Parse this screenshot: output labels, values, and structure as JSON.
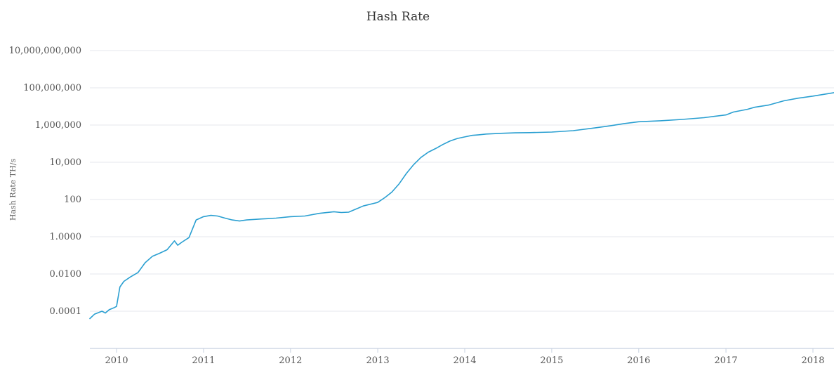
{
  "chart_data": {
    "type": "line",
    "title": "Hash Rate",
    "xlabel": "",
    "ylabel": "Hash Rate TH/s",
    "y_scale": "log",
    "ylim": [
      1e-05,
      10000000000
    ],
    "xlim": [
      "2009-09-01",
      "2018-03-31"
    ],
    "grid": true,
    "legend": "none",
    "y_ticks": [
      {
        "value": 10000000000,
        "label": "10,000,000,000"
      },
      {
        "value": 100000000,
        "label": "100,000,000"
      },
      {
        "value": 1000000,
        "label": "1,000,000"
      },
      {
        "value": 10000,
        "label": "10,000"
      },
      {
        "value": 100,
        "label": "100"
      },
      {
        "value": 1,
        "label": "1.0000"
      },
      {
        "value": 0.01,
        "label": "0.0100"
      },
      {
        "value": 0.0001,
        "label": "0.0001"
      }
    ],
    "x_ticks": [
      {
        "value": "2010-01-01",
        "label": "2010"
      },
      {
        "value": "2011-01-01",
        "label": "2011"
      },
      {
        "value": "2012-01-01",
        "label": "2012"
      },
      {
        "value": "2013-01-01",
        "label": "2013"
      },
      {
        "value": "2014-01-01",
        "label": "2014"
      },
      {
        "value": "2015-01-01",
        "label": "2015"
      },
      {
        "value": "2016-01-01",
        "label": "2016"
      },
      {
        "value": "2017-01-01",
        "label": "2017"
      },
      {
        "value": "2018-01-01",
        "label": "2018"
      }
    ],
    "series": [
      {
        "color": "#2a9fd1",
        "x": [
          "2009-09-01",
          "2009-10-01",
          "2009-11-01",
          "2009-11-15",
          "2009-12-01",
          "2009-12-20",
          "2010-01-01",
          "2010-01-15",
          "2010-02-01",
          "2010-03-01",
          "2010-04-01",
          "2010-05-01",
          "2010-06-01",
          "2010-07-01",
          "2010-08-01",
          "2010-09-01",
          "2010-09-15",
          "2010-10-01",
          "2010-11-01",
          "2010-12-01",
          "2011-01-01",
          "2011-02-01",
          "2011-03-01",
          "2011-04-01",
          "2011-05-01",
          "2011-06-01",
          "2011-07-01",
          "2011-09-01",
          "2011-11-01",
          "2012-01-01",
          "2012-03-01",
          "2012-05-01",
          "2012-07-01",
          "2012-08-01",
          "2012-09-01",
          "2012-11-01",
          "2013-01-01",
          "2013-02-01",
          "2013-03-01",
          "2013-04-01",
          "2013-05-01",
          "2013-06-01",
          "2013-07-01",
          "2013-08-01",
          "2013-09-01",
          "2013-10-01",
          "2013-11-01",
          "2013-12-01",
          "2014-01-01",
          "2014-02-01",
          "2014-03-01",
          "2014-04-01",
          "2014-06-01",
          "2014-08-01",
          "2014-10-01",
          "2015-01-01",
          "2015-04-01",
          "2015-07-01",
          "2015-09-01",
          "2015-11-01",
          "2016-01-01",
          "2016-04-01",
          "2016-07-01",
          "2016-10-01",
          "2017-01-01",
          "2017-02-01",
          "2017-04-01",
          "2017-05-01",
          "2017-07-01",
          "2017-09-01",
          "2017-11-01",
          "2018-01-01",
          "2018-03-31"
        ],
        "values": [
          4e-05,
          7e-05,
          0.0001,
          8e-05,
          0.00012,
          0.00015,
          0.00018,
          0.002,
          0.004,
          0.007,
          0.012,
          0.04,
          0.09,
          0.13,
          0.2,
          0.6,
          0.35,
          0.5,
          0.9,
          8,
          12,
          14,
          13,
          10,
          8,
          7,
          8,
          9,
          10,
          12,
          13,
          18,
          22,
          20,
          21,
          45,
          70,
          130,
          250,
          700,
          2500,
          7500,
          18000,
          35000,
          55000,
          90000,
          140000,
          190000,
          230000,
          280000,
          300000,
          330000,
          360000,
          380000,
          390000,
          420000,
          500000,
          700000,
          900000,
          1200000,
          1500000,
          1700000,
          2000000,
          2500000,
          3500000,
          5000000,
          7000000,
          9000000,
          12000000,
          20000000,
          28000000,
          36000000,
          55000000
        ]
      }
    ]
  }
}
